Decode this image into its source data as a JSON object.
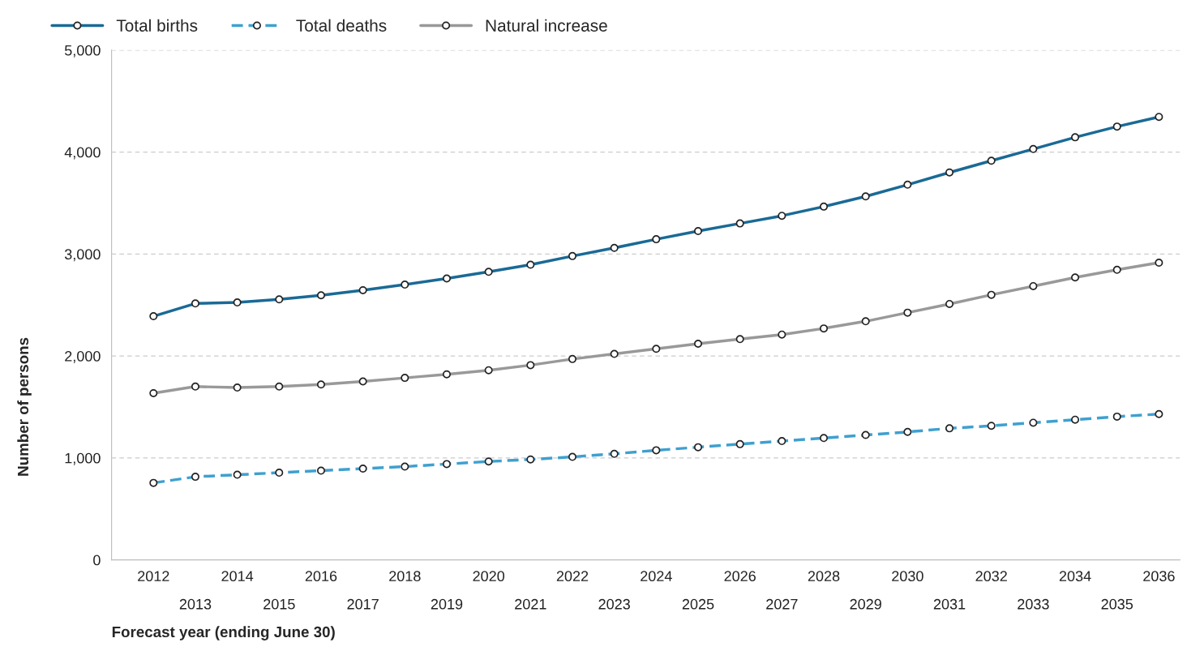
{
  "chart_data": {
    "type": "line",
    "xlabel": "Forecast year (ending June 30)",
    "ylabel": "Number of persons",
    "categories": [
      "2012",
      "2013",
      "2014",
      "2015",
      "2016",
      "2017",
      "2018",
      "2019",
      "2020",
      "2021",
      "2022",
      "2023",
      "2024",
      "2025",
      "2026",
      "2027",
      "2028",
      "2029",
      "2030",
      "2031",
      "2032",
      "2033",
      "2034",
      "2035",
      "2036"
    ],
    "series": [
      {
        "name": "Total births",
        "color": "#1a6a96",
        "line_style": "solid",
        "values": [
          2390,
          2515,
          2525,
          2555,
          2595,
          2645,
          2700,
          2760,
          2825,
          2895,
          2980,
          3060,
          3145,
          3225,
          3300,
          3375,
          3465,
          3565,
          3680,
          3800,
          3915,
          4030,
          4145,
          4250,
          4345
        ]
      },
      {
        "name": "Total deaths",
        "color": "#3fa0cf",
        "line_style": "dashed",
        "values": [
          755,
          815,
          835,
          855,
          875,
          895,
          915,
          940,
          965,
          985,
          1010,
          1040,
          1075,
          1105,
          1135,
          1165,
          1195,
          1225,
          1255,
          1290,
          1315,
          1345,
          1375,
          1405,
          1430
        ]
      },
      {
        "name": "Natural increase",
        "color": "#999999",
        "line_style": "solid",
        "values": [
          1635,
          1700,
          1690,
          1700,
          1720,
          1750,
          1785,
          1820,
          1860,
          1910,
          1970,
          2020,
          2070,
          2120,
          2165,
          2210,
          2270,
          2340,
          2425,
          2510,
          2600,
          2685,
          2770,
          2845,
          2915
        ]
      }
    ],
    "ylim": [
      0,
      5000
    ],
    "yticks": [
      {
        "value": 0,
        "label": "0"
      },
      {
        "value": 1000,
        "label": "1,000"
      },
      {
        "value": 2000,
        "label": "2,000"
      },
      {
        "value": 3000,
        "label": "3,000"
      },
      {
        "value": 4000,
        "label": "4,000"
      },
      {
        "value": 5000,
        "label": "5,000"
      }
    ],
    "grid": "y",
    "legend": "top left",
    "marker": "circle"
  }
}
